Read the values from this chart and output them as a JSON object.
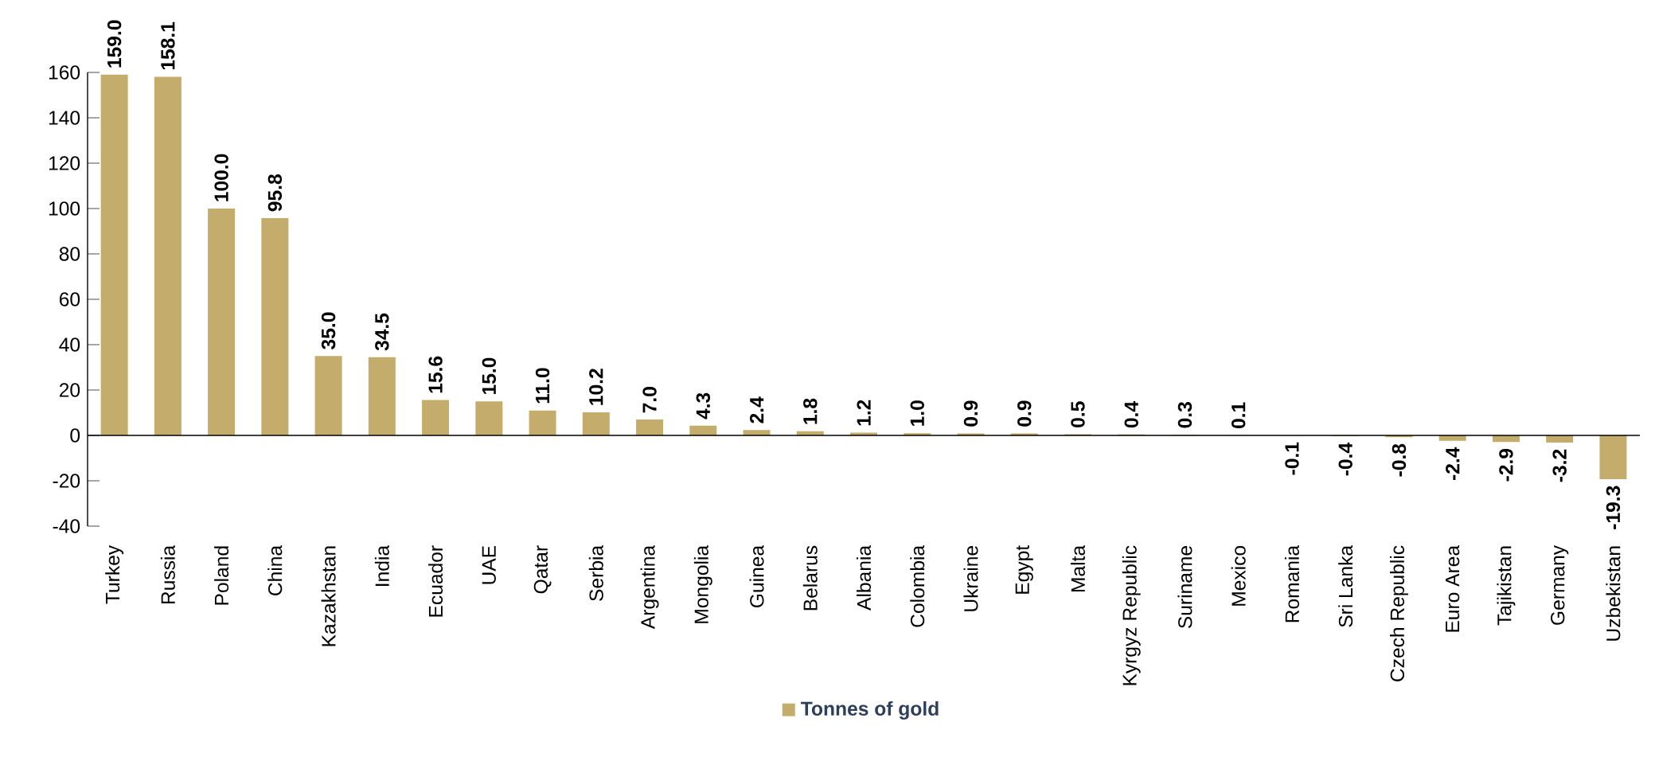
{
  "chart_data": {
    "type": "bar",
    "categories": [
      "Turkey",
      "Russia",
      "Poland",
      "China",
      "Kazakhstan",
      "India",
      "Ecuador",
      "UAE",
      "Qatar",
      "Serbia",
      "Argentina",
      "Mongolia",
      "Guinea",
      "Belarus",
      "Albania",
      "Colombia",
      "Ukraine",
      "Egypt",
      "Malta",
      "Kyrgyz Republic",
      "Suriname",
      "Mexico",
      "Romania",
      "Sri Lanka",
      "Czech Republic",
      "Euro Area",
      "Tajikistan",
      "Germany",
      "Uzbekistan"
    ],
    "series": [
      {
        "name": "Tonnes of gold",
        "color": "#c4ac6c",
        "values": [
          159.0,
          158.1,
          100.0,
          95.8,
          35.0,
          34.5,
          15.6,
          15.0,
          11.0,
          10.2,
          7.0,
          4.3,
          2.4,
          1.8,
          1.2,
          1.0,
          0.9,
          0.9,
          0.5,
          0.4,
          0.3,
          0.1,
          -0.1,
          -0.4,
          -0.8,
          -2.4,
          -2.9,
          -3.2,
          -19.3
        ],
        "value_labels": [
          "159.0",
          "158.1",
          "100.0",
          "95.8",
          "35.0",
          "34.5",
          "15.6",
          "15.0",
          "11.0",
          "10.2",
          "7.0",
          "4.3",
          "2.4",
          "1.8",
          "1.2",
          "1.0",
          "0.9",
          "0.9",
          "0.5",
          "0.4",
          "0.3",
          "0.1",
          "-0.1",
          "-0.4",
          "-0.8",
          "-2.4",
          "-2.9",
          "-3.2",
          "-19.3"
        ]
      }
    ],
    "ylim": [
      -40,
      160
    ],
    "yticks": [
      -40,
      -20,
      0,
      20,
      40,
      60,
      80,
      100,
      120,
      140,
      160
    ],
    "legend": "bottom"
  }
}
